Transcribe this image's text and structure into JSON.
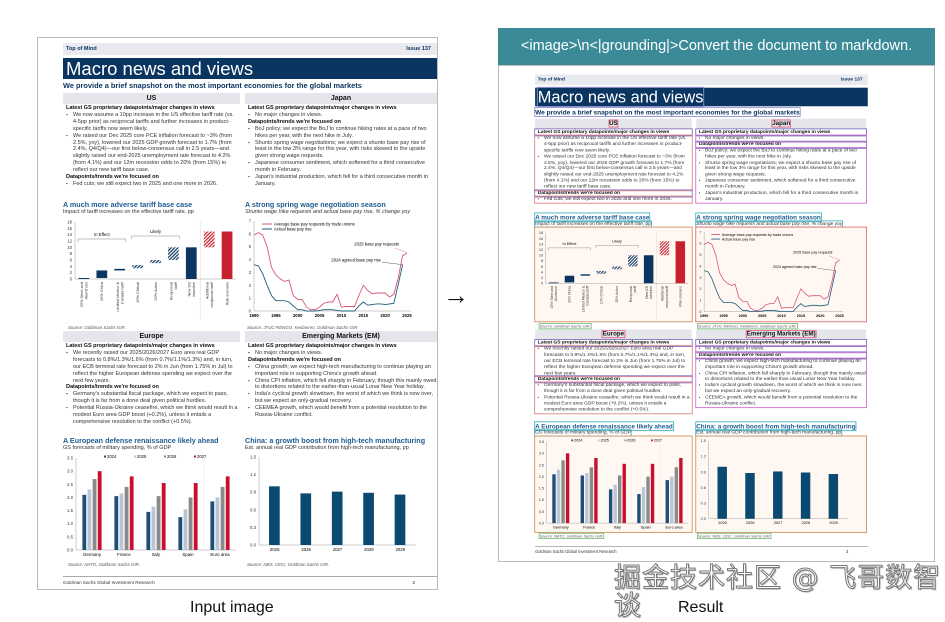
{
  "prompt": "<image>\\n<|grounding|>Convert the document to markdown.",
  "captions": {
    "input": "Input image",
    "result": "Result"
  },
  "watermark": "掘金技术社区 @ 飞哥数智谈",
  "doc": {
    "header_left": "Top of Mind",
    "header_right": "Issue 137",
    "title": "Macro news and views",
    "subtitle": "We provide a brief snapshot on the most important economies for the global markets",
    "regions": [
      {
        "name": "US",
        "groups": [
          {
            "heading": "Latest GS proprietary datapoints/major changes in views",
            "bullets": [
              "We now assume a 10pp increase in the US effective tariff rate (vs. 4-5pp prior) as reciprocal tariffs and further increases in product-specific tariffs now seem likely.",
              "We raised our Dec 2025 core PCE inflation forecast to ~3% (from 2.5%, yoy), lowered our 2025 GDP growth forecast to 1.7% (from 2.4%, Q4/Q4)—our first below-consensus call in 2.5 years—and slightly raised our end-2025 unemployment rate forecast to 4.2% (from 4.1%) and our 12m recession odds to 20% (from 15%) to reflect our new tariff base case."
            ]
          },
          {
            "heading": "Datapoints/trends we're focused on",
            "bullets": [
              "Fed cuts; we still expect two in 2025 and one more in 2026."
            ]
          }
        ]
      },
      {
        "name": "Japan",
        "groups": [
          {
            "heading": "Latest GS proprietary datapoints/major changes in views",
            "bullets": [
              "No major changes in views."
            ]
          },
          {
            "heading": "Datapoints/trends we're focused on",
            "bullets": [
              "BoJ policy; we expect the BoJ to continue hiking rates at a pace of two hikes per year, with the next hike in July.",
              "Shunto spring wage negotiations; we expect a shunto base pay rise of least in the low 3% range for this year, with risks skewed to the upside given strong wage requests.",
              "Japanese consumer sentiment, which softened for a third consecutive month in February.",
              "Japan's industrial production, which fell for a third consecutive month in January."
            ]
          }
        ]
      },
      {
        "name": "Europe",
        "groups": [
          {
            "heading": "Latest GS proprietary datapoints/major changes in views",
            "bullets": [
              "We recently raised our 2025/2026/2027 Euro area real GDP forecasts to 0.8%/1.3%/1.6% (from 0.7%/1.1%/1.3%) and, in turn, our ECB terminal rate forecast to 2% in Jun (from 1.75% in Jul) to reflect the higher European defense spending we expect over the next few years."
            ]
          },
          {
            "heading": "Datapoints/trends we're focused on",
            "bullets": [
              "Germany's substantial fiscal package, which we expect to pass, though it is far from a done deal given political hurdles.",
              "Potential Russia-Ukraine ceasefire, which we think would result in a modest Euro area GDP boost (+0.2%), unless it entails a comprehensive resolution to the conflict (+0.5%)."
            ]
          }
        ]
      },
      {
        "name": "Emerging Markets (EM)",
        "groups": [
          {
            "heading": "Latest GS proprietary datapoints/major changes in views",
            "bullets": [
              "No major changes in views."
            ]
          },
          {
            "heading": "Datapoints/trends we're focused on",
            "bullets": [
              "China growth; we expect high-tech manufacturing to continue playing an important role in supporting China's growth ahead.",
              "China CPI inflation, which fell sharply in February, though this mainly owed to distortions related to the earlier-than-usual Lunar New Year holiday.",
              "India's cyclical growth slowdown, the worst of which we think is now over, but we expect an only-gradual recovery.",
              "CEEMEA growth, which would benefit from a potential resolution to the Russia-Ukraine conflict."
            ]
          }
        ]
      }
    ],
    "footer": "Goldman Sachs Global Investment Research",
    "page_number": "2"
  },
  "chart_data": [
    {
      "type": "bar",
      "title": "A much more adverse tariff base case",
      "subtitle": "Impact of tariff increases on the effective tariff rate, pp",
      "categories": [
        "25% Steel and Aluminum",
        "20% China",
        "Limited Mexico & Canada tariff",
        "10% Critical",
        "25% Autos",
        "Reciprocal tariff",
        "New GS baseline",
        "Additional reciprocal tariff",
        "Risk scenario"
      ],
      "ranges": [
        [
          0,
          0.3
        ],
        [
          0.3,
          2.7
        ],
        [
          2.7,
          3.2
        ],
        [
          3.4,
          4.4
        ],
        [
          5,
          6
        ],
        [
          6,
          10
        ],
        [
          0,
          10
        ],
        [
          10,
          15
        ],
        [
          0,
          15
        ]
      ],
      "styles": [
        "solid",
        "solid",
        "solid",
        "hatched",
        "hatched",
        "hatched",
        "solid",
        "hatched-red",
        "solid-red"
      ],
      "annotations": [
        "In Effect",
        "Likely"
      ],
      "ylim": [
        0,
        18
      ],
      "yticks": [
        0,
        2,
        4,
        6,
        8,
        10,
        12,
        14,
        16,
        18
      ],
      "source": "Source: Goldman Sachs GIR.",
      "colors": {
        "navy": "#0b3561",
        "red": "#c8202e"
      }
    },
    {
      "type": "line",
      "title": "A strong spring wage negotiation season",
      "subtitle": "Shunto wage hike requests and actual base pay rise, % change yoy",
      "x": [
        1990,
        1991,
        1992,
        1993,
        1994,
        1995,
        1996,
        1997,
        1998,
        1999,
        2000,
        2001,
        2002,
        2003,
        2004,
        2005,
        2006,
        2007,
        2008,
        2009,
        2010,
        2011,
        2012,
        2013,
        2014,
        2015,
        2016,
        2017,
        2018,
        2019,
        2020,
        2021,
        2022,
        2023,
        2024,
        2025
      ],
      "series": [
        {
          "name": "Average base pay requests by trade unions",
          "color": "#d9577a",
          "values": [
            5.9,
            6.1,
            5.9,
            5.0,
            3.4,
            2.8,
            2.5,
            2.3,
            2.4,
            1.2,
            0.9,
            0.9,
            0.3,
            0.1,
            0.1,
            0.3,
            0.6,
            0.7,
            0.7,
            1.3,
            0.3,
            0.35,
            0.35,
            0.35,
            1.2,
            2.0,
            1.6,
            1.35,
            1.4,
            1.4,
            1.4,
            1.1,
            1.3,
            2.6,
            4.3,
            4.5
          ]
        },
        {
          "name": "Actual base pay rise",
          "color": "#1f5c7a",
          "values": [
            3.6,
            3.5,
            2.9,
            2.0,
            1.2,
            0.8,
            0.8,
            0.8,
            0.7,
            0.4,
            0.1,
            0.1,
            0.0,
            0.0,
            0.0,
            0.05,
            0.1,
            0.1,
            0.1,
            0.05,
            0.0,
            0.0,
            0.0,
            0.0,
            0.4,
            0.7,
            0.45,
            0.5,
            0.55,
            0.55,
            0.5,
            0.55,
            0.6,
            2.1,
            3.6,
            null
          ]
        }
      ],
      "annotations": [
        "2025 base pay requests",
        "2024 agreed base pay rise"
      ],
      "xticks": [
        1990,
        1995,
        2000,
        2005,
        2010,
        2015,
        2020,
        2025
      ],
      "ylim": [
        0,
        7
      ],
      "yticks": [
        0,
        1,
        2,
        3,
        4,
        5,
        6,
        7
      ],
      "source": "Source: JTUC-RENGO, Keidanren, Goldman Sachs GIR."
    },
    {
      "type": "bar",
      "title": "A European defense renaissance likely ahead",
      "subtitle": "GS forecasts of military spending, % of GDP",
      "categories": [
        "Germany",
        "France",
        "Italy",
        "Spain",
        "Euro area"
      ],
      "series": [
        {
          "name": "2024",
          "color": "#1f4e79",
          "values": [
            2.1,
            2.05,
            1.45,
            1.25,
            1.85
          ]
        },
        {
          "name": "2025",
          "color": "#b8c6d8",
          "values": [
            2.3,
            2.15,
            1.65,
            1.55,
            2.0
          ]
        },
        {
          "name": "2026",
          "color": "#8a8a8a",
          "values": [
            2.7,
            2.4,
            2.05,
            2.0,
            2.4
          ]
        },
        {
          "name": "2027",
          "color": "#c8102e",
          "values": [
            3.0,
            2.8,
            2.55,
            2.55,
            2.8
          ]
        }
      ],
      "ylim": [
        0,
        3.5
      ],
      "yticks": [
        "0.0",
        "0.5",
        "1.0",
        "1.5",
        "2.0",
        "2.5",
        "3.0",
        "3.5"
      ],
      "legend": "top",
      "source": "Source: NATO, Goldman Sachs GIR."
    },
    {
      "type": "bar",
      "title": "China: a growth boost from high-tech manufacturing",
      "subtitle": "Est. annual real GDP contribution from high-tech manufacturing, pp",
      "categories": [
        "2025",
        "2026",
        "2027",
        "2028",
        "2029"
      ],
      "values": [
        1.0,
        0.88,
        0.91,
        0.89,
        0.86
      ],
      "color": "#0b4a70",
      "ylim": [
        0,
        1.5
      ],
      "yticks": [
        "0.0",
        "0.3",
        "0.6",
        "0.9",
        "1.2",
        "1.5"
      ],
      "source": "Source: NBS, CEIC, Goldman Sachs GIR."
    }
  ]
}
